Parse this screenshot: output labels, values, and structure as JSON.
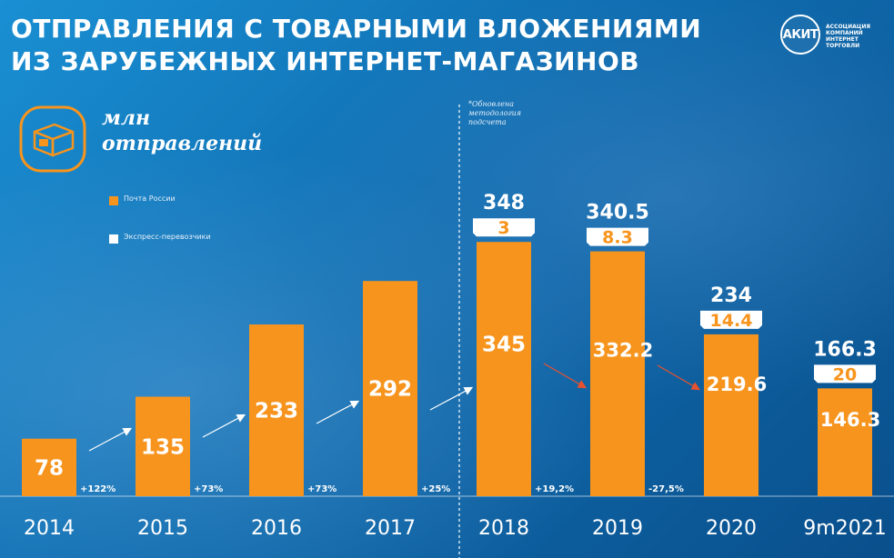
{
  "header": {
    "title_line1": "Отправления с товарными вложениями",
    "title_line2": "из зарубежных интернет-магазинов"
  },
  "logo": {
    "abbr": "АКИТ",
    "line1": "Ассоциация",
    "line2": "компаний",
    "line3": "интернет",
    "line4": "торговли"
  },
  "unit": {
    "line1": "млн",
    "line2": "отправлений"
  },
  "note": {
    "line1": "*Обновлена",
    "line2": "методология",
    "line3": "подсчета"
  },
  "colors": {
    "orange": "#f7941d",
    "white": "#ffffff",
    "background": "#0f6db0",
    "decline_arrow": "#e8512d"
  },
  "chart_data": {
    "type": "bar",
    "stacked": true,
    "categories": [
      "2014",
      "2015",
      "2016",
      "2017",
      "2018",
      "2019",
      "2020",
      "9m2021"
    ],
    "series": [
      {
        "name": "Почта России",
        "values": [
          78,
          135,
          233,
          292,
          345,
          332.2,
          219.6,
          146.3
        ],
        "color": "#f7941d"
      },
      {
        "name": "Экспресс-перевозчики",
        "values": [
          null,
          null,
          null,
          null,
          3,
          8.3,
          14.4,
          20
        ],
        "color": "#ffffff"
      }
    ],
    "totals": [
      null,
      null,
      null,
      null,
      348,
      340.5,
      234,
      166.3
    ],
    "growth_labels": [
      "+122%",
      "+73%",
      "+73%",
      "+25%",
      "+19,2%",
      "-27,5%"
    ],
    "legend": {
      "placement": "left"
    },
    "ylim": [
      0,
      400
    ]
  }
}
